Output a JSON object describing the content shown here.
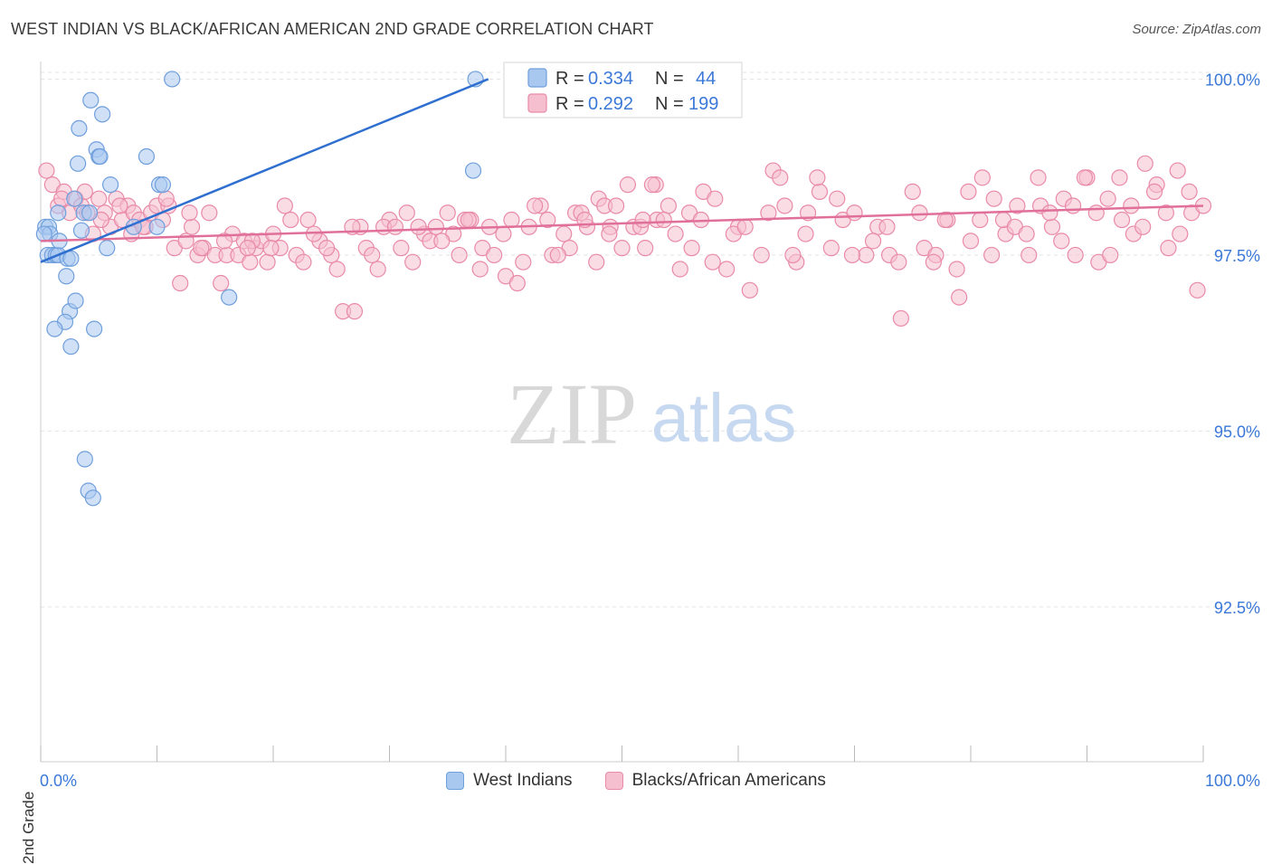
{
  "header": {
    "title": "WEST INDIAN VS BLACK/AFRICAN AMERICAN 2ND GRADE CORRELATION CHART",
    "source": "Source: ZipAtlas.com"
  },
  "watermark": {
    "zip": "ZIP",
    "atlas": "atlas"
  },
  "legend_stats": [
    {
      "r_label": "R =",
      "r_value": "0.334",
      "n_label": "N =",
      "n_value": "44"
    },
    {
      "r_label": "R =",
      "r_value": "0.292",
      "n_label": "N =",
      "n_value": "199"
    }
  ],
  "colors": {
    "blue_fill": "#a9c8f0",
    "blue_stroke": "#6f9fdc",
    "blue_line": "#2f6fcf",
    "pink_fill": "#f6bfd0",
    "pink_stroke": "#e98aa9",
    "pink_line": "#e07099",
    "accent_text": "#3b78d8",
    "grid": "#e3e3e3"
  },
  "chart_data": {
    "type": "scatter",
    "title": "WEST INDIAN VS BLACK/AFRICAN AMERICAN 2ND GRADE CORRELATION CHART",
    "xlabel": "",
    "ylabel": "2nd Grade",
    "x_tick_labels": [
      "0.0%",
      "100.0%"
    ],
    "y_tick_labels": [
      "100.0%",
      "97.5%",
      "95.0%",
      "92.5%"
    ],
    "y_ticks": [
      100.0,
      97.5,
      95.0,
      92.5
    ],
    "xlim": [
      0,
      100
    ],
    "ylim": [
      90.3,
      100.25
    ],
    "grid": true,
    "legend_position": "top-center",
    "series": [
      {
        "name": "West Indians",
        "color": "#a9c8f0",
        "trend": {
          "x": [
            0.0,
            38.5
          ],
          "y": [
            97.4,
            100.0
          ]
        },
        "points": [
          [
            0.4,
            97.9
          ],
          [
            0.7,
            97.9
          ],
          [
            0.8,
            97.8
          ],
          [
            0.3,
            97.8
          ],
          [
            0.6,
            97.5
          ],
          [
            1.0,
            97.5
          ],
          [
            1.3,
            97.5
          ],
          [
            1.5,
            97.5
          ],
          [
            2.3,
            97.45
          ],
          [
            2.6,
            97.45
          ],
          [
            1.6,
            97.7
          ],
          [
            1.5,
            98.1
          ],
          [
            2.9,
            98.3
          ],
          [
            3.5,
            97.85
          ],
          [
            3.7,
            98.1
          ],
          [
            4.2,
            98.1
          ],
          [
            2.2,
            97.2
          ],
          [
            2.5,
            96.7
          ],
          [
            2.1,
            96.55
          ],
          [
            1.2,
            96.45
          ],
          [
            2.6,
            96.2
          ],
          [
            3.0,
            96.85
          ],
          [
            4.6,
            96.45
          ],
          [
            3.8,
            94.6
          ],
          [
            4.1,
            94.15
          ],
          [
            4.5,
            94.05
          ],
          [
            3.3,
            99.3
          ],
          [
            4.3,
            99.7
          ],
          [
            5.3,
            99.5
          ],
          [
            4.8,
            99.0
          ],
          [
            5.0,
            98.9
          ],
          [
            5.1,
            98.9
          ],
          [
            6.0,
            98.5
          ],
          [
            3.2,
            98.8
          ],
          [
            5.7,
            97.6
          ],
          [
            8.0,
            97.9
          ],
          [
            9.1,
            98.9
          ],
          [
            10.2,
            98.5
          ],
          [
            10.5,
            98.5
          ],
          [
            10.0,
            97.9
          ],
          [
            11.3,
            100.0
          ],
          [
            16.2,
            96.9
          ],
          [
            37.4,
            100.0
          ],
          [
            37.2,
            98.7
          ]
        ]
      },
      {
        "name": "Blacks/African Americans",
        "color": "#f6bfd0",
        "trend": {
          "x": [
            0.0,
            100.0
          ],
          "y": [
            97.7,
            98.2
          ]
        },
        "points": [
          [
            0.5,
            98.7
          ],
          [
            1.0,
            98.5
          ],
          [
            1.5,
            98.2
          ],
          [
            2.0,
            98.4
          ],
          [
            2.5,
            98.1
          ],
          [
            3.0,
            98.3
          ],
          [
            3.5,
            98.2
          ],
          [
            4.0,
            98.1
          ],
          [
            4.5,
            97.8
          ],
          [
            5.0,
            98.3
          ],
          [
            5.5,
            98.1
          ],
          [
            6.0,
            97.9
          ],
          [
            6.5,
            98.3
          ],
          [
            7.0,
            98.0
          ],
          [
            7.5,
            98.2
          ],
          [
            8.0,
            98.1
          ],
          [
            8.5,
            98.0
          ],
          [
            9.0,
            97.9
          ],
          [
            9.5,
            98.1
          ],
          [
            10.0,
            98.2
          ],
          [
            10.5,
            98.0
          ],
          [
            11.0,
            98.2
          ],
          [
            11.5,
            97.6
          ],
          [
            12.0,
            97.1
          ],
          [
            12.5,
            97.7
          ],
          [
            13.0,
            97.9
          ],
          [
            13.5,
            97.5
          ],
          [
            14.0,
            97.6
          ],
          [
            14.5,
            98.1
          ],
          [
            15.0,
            97.5
          ],
          [
            15.5,
            97.1
          ],
          [
            16.0,
            97.5
          ],
          [
            16.5,
            97.8
          ],
          [
            17.0,
            97.5
          ],
          [
            17.5,
            97.7
          ],
          [
            18.0,
            97.4
          ],
          [
            18.5,
            97.6
          ],
          [
            19.0,
            97.7
          ],
          [
            19.5,
            97.4
          ],
          [
            20.0,
            97.8
          ],
          [
            21.0,
            98.2
          ],
          [
            22.0,
            97.5
          ],
          [
            23.0,
            98.0
          ],
          [
            24.0,
            97.7
          ],
          [
            25.0,
            97.5
          ],
          [
            26.0,
            96.7
          ],
          [
            27.0,
            96.7
          ],
          [
            28.0,
            97.6
          ],
          [
            29.0,
            97.3
          ],
          [
            30.0,
            98.0
          ],
          [
            31.0,
            97.6
          ],
          [
            32.0,
            97.4
          ],
          [
            33.0,
            97.8
          ],
          [
            34.0,
            97.9
          ],
          [
            35.0,
            98.1
          ],
          [
            36.0,
            97.5
          ],
          [
            37.0,
            98.0
          ],
          [
            38.0,
            97.6
          ],
          [
            39.0,
            97.5
          ],
          [
            40.0,
            97.2
          ],
          [
            41.0,
            97.1
          ],
          [
            42.0,
            97.9
          ],
          [
            43.0,
            98.2
          ],
          [
            44.0,
            97.5
          ],
          [
            45.0,
            97.8
          ],
          [
            46.0,
            98.1
          ],
          [
            47.0,
            97.9
          ],
          [
            48.0,
            98.3
          ],
          [
            49.0,
            97.9
          ],
          [
            50.0,
            97.6
          ],
          [
            51.0,
            97.9
          ],
          [
            52.0,
            97.6
          ],
          [
            53.0,
            98.0
          ],
          [
            54.0,
            98.2
          ],
          [
            55.0,
            97.3
          ],
          [
            56.0,
            97.6
          ],
          [
            57.0,
            98.4
          ],
          [
            58.0,
            98.3
          ],
          [
            59.0,
            97.3
          ],
          [
            60.0,
            97.9
          ],
          [
            61.0,
            97.0
          ],
          [
            62.0,
            97.5
          ],
          [
            63.0,
            98.7
          ],
          [
            64.0,
            98.2
          ],
          [
            65.0,
            97.4
          ],
          [
            66.0,
            98.1
          ],
          [
            67.0,
            98.4
          ],
          [
            68.0,
            97.6
          ],
          [
            69.0,
            98.0
          ],
          [
            70.0,
            98.1
          ],
          [
            71.0,
            97.5
          ],
          [
            72.0,
            97.9
          ],
          [
            73.0,
            97.5
          ],
          [
            74.0,
            96.6
          ],
          [
            75.0,
            98.4
          ],
          [
            76.0,
            97.6
          ],
          [
            77.0,
            97.5
          ],
          [
            78.0,
            98.0
          ],
          [
            79.0,
            96.9
          ],
          [
            80.0,
            97.7
          ],
          [
            81.0,
            98.6
          ],
          [
            82.0,
            98.3
          ],
          [
            83.0,
            97.8
          ],
          [
            84.0,
            98.2
          ],
          [
            85.0,
            97.5
          ],
          [
            86.0,
            98.2
          ],
          [
            87.0,
            97.9
          ],
          [
            88.0,
            98.3
          ],
          [
            89.0,
            97.5
          ],
          [
            90.0,
            98.6
          ],
          [
            91.0,
            97.4
          ],
          [
            92.0,
            97.5
          ],
          [
            93.0,
            98.0
          ],
          [
            94.0,
            97.8
          ],
          [
            95.0,
            98.8
          ],
          [
            96.0,
            98.5
          ],
          [
            97.0,
            97.6
          ],
          [
            98.0,
            97.8
          ],
          [
            99.0,
            98.1
          ],
          [
            100.0,
            98.2
          ],
          [
            5.2,
            98.0
          ],
          [
            7.8,
            97.8
          ],
          [
            12.8,
            98.1
          ],
          [
            18.2,
            97.7
          ],
          [
            20.6,
            97.6
          ],
          [
            22.6,
            97.4
          ],
          [
            24.6,
            97.6
          ],
          [
            27.5,
            97.9
          ],
          [
            29.5,
            97.9
          ],
          [
            31.5,
            98.1
          ],
          [
            33.5,
            97.7
          ],
          [
            35.5,
            97.8
          ],
          [
            36.5,
            98.0
          ],
          [
            38.6,
            97.9
          ],
          [
            39.8,
            97.8
          ],
          [
            41.5,
            97.4
          ],
          [
            43.6,
            98.0
          ],
          [
            45.5,
            97.6
          ],
          [
            46.5,
            98.1
          ],
          [
            47.8,
            97.4
          ],
          [
            48.9,
            97.8
          ],
          [
            50.5,
            98.5
          ],
          [
            51.6,
            97.9
          ],
          [
            52.9,
            98.5
          ],
          [
            54.6,
            97.8
          ],
          [
            55.8,
            98.1
          ],
          [
            56.8,
            98.0
          ],
          [
            57.8,
            97.4
          ],
          [
            59.6,
            97.8
          ],
          [
            60.6,
            97.9
          ],
          [
            62.6,
            98.1
          ],
          [
            63.6,
            98.6
          ],
          [
            64.7,
            97.5
          ],
          [
            65.8,
            97.8
          ],
          [
            66.8,
            98.6
          ],
          [
            68.5,
            98.3
          ],
          [
            69.8,
            97.5
          ],
          [
            71.6,
            97.7
          ],
          [
            72.8,
            97.9
          ],
          [
            73.8,
            97.4
          ],
          [
            75.6,
            98.1
          ],
          [
            76.8,
            97.4
          ],
          [
            77.8,
            98.0
          ],
          [
            78.8,
            97.3
          ],
          [
            79.8,
            98.4
          ],
          [
            80.8,
            98.0
          ],
          [
            81.8,
            97.5
          ],
          [
            82.8,
            98.0
          ],
          [
            83.8,
            97.9
          ],
          [
            84.8,
            97.8
          ],
          [
            85.8,
            98.6
          ],
          [
            86.8,
            98.1
          ],
          [
            87.8,
            97.7
          ],
          [
            88.8,
            98.2
          ],
          [
            89.8,
            98.6
          ],
          [
            90.8,
            98.1
          ],
          [
            91.8,
            98.3
          ],
          [
            92.8,
            98.6
          ],
          [
            93.8,
            98.2
          ],
          [
            94.8,
            97.9
          ],
          [
            95.8,
            98.4
          ],
          [
            96.8,
            98.1
          ],
          [
            97.8,
            98.7
          ],
          [
            98.8,
            98.4
          ],
          [
            99.5,
            97.0
          ],
          [
            1.8,
            98.3
          ],
          [
            3.8,
            98.4
          ],
          [
            6.8,
            98.2
          ],
          [
            8.8,
            97.9
          ],
          [
            10.8,
            98.3
          ],
          [
            13.8,
            97.6
          ],
          [
            15.8,
            97.7
          ],
          [
            17.8,
            97.6
          ],
          [
            19.8,
            97.6
          ],
          [
            21.5,
            98.0
          ],
          [
            23.5,
            97.8
          ],
          [
            25.5,
            97.3
          ],
          [
            26.8,
            97.9
          ],
          [
            28.5,
            97.5
          ],
          [
            30.5,
            97.9
          ],
          [
            32.5,
            97.9
          ],
          [
            34.5,
            97.7
          ],
          [
            36.8,
            98.0
          ],
          [
            37.8,
            97.3
          ],
          [
            40.5,
            98.0
          ],
          [
            42.5,
            98.2
          ],
          [
            44.5,
            97.5
          ],
          [
            46.8,
            98.0
          ],
          [
            48.5,
            98.2
          ],
          [
            49.5,
            98.2
          ],
          [
            51.8,
            98.0
          ],
          [
            52.6,
            98.5
          ],
          [
            53.6,
            98.0
          ]
        ]
      }
    ]
  },
  "legend_bottom": [
    {
      "label": "West Indians"
    },
    {
      "label": "Blacks/African Americans"
    }
  ]
}
